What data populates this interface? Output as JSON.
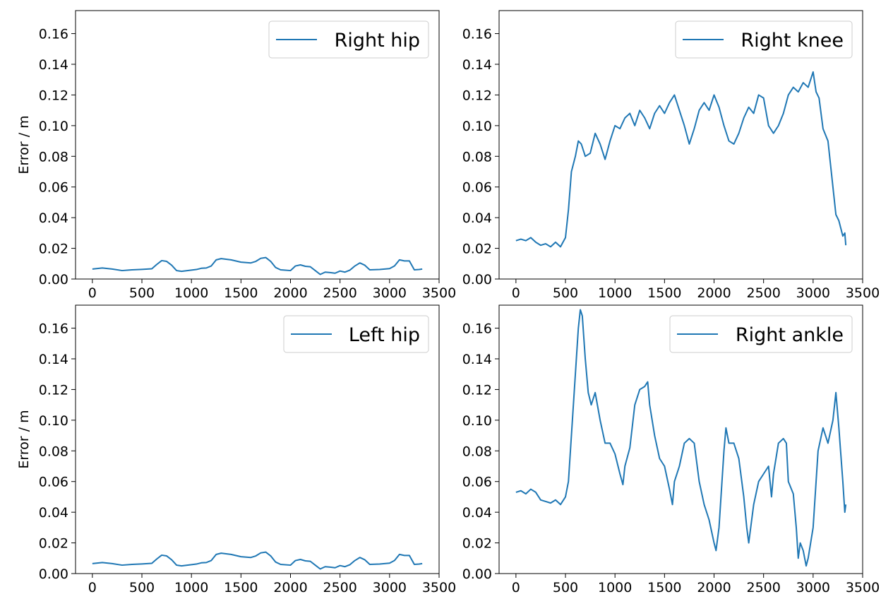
{
  "chart_data": [
    {
      "type": "line",
      "panel": "top-left",
      "ylabel": "Error / m",
      "xlim": [
        -170,
        3500
      ],
      "ylim": [
        0,
        0.175
      ],
      "xticks": [
        0,
        500,
        1000,
        1500,
        2000,
        2500,
        3000,
        3500
      ],
      "xtick_labels": [
        "0",
        "500",
        "1000",
        "1500",
        "2000",
        "2500",
        "3000",
        "3500"
      ],
      "yticks": [
        0,
        0.02,
        0.04,
        0.06,
        0.08,
        0.1,
        0.12,
        0.14,
        0.16
      ],
      "ytick_labels": [
        "0.00",
        "0.02",
        "0.04",
        "0.06",
        "0.08",
        "0.10",
        "0.12",
        "0.14",
        "0.16"
      ],
      "legend": "top-right",
      "grid": false,
      "series": [
        {
          "name": "Right hip",
          "color": "#1f77b4",
          "x": [
            0,
            100,
            200,
            300,
            400,
            500,
            600,
            650,
            700,
            750,
            800,
            850,
            900,
            1000,
            1050,
            1100,
            1150,
            1200,
            1250,
            1300,
            1400,
            1500,
            1600,
            1650,
            1700,
            1750,
            1800,
            1850,
            1900,
            2000,
            2050,
            2100,
            2150,
            2200,
            2250,
            2300,
            2350,
            2400,
            2450,
            2500,
            2550,
            2600,
            2650,
            2700,
            2750,
            2800,
            2900,
            3000,
            3050,
            3100,
            3150,
            3200,
            3250,
            3300,
            3330
          ],
          "y": [
            0.0065,
            0.0072,
            0.0065,
            0.0055,
            0.006,
            0.0063,
            0.0067,
            0.0095,
            0.012,
            0.0115,
            0.009,
            0.0055,
            0.005,
            0.0058,
            0.0062,
            0.007,
            0.0072,
            0.0085,
            0.0125,
            0.0133,
            0.0125,
            0.011,
            0.0105,
            0.0115,
            0.0135,
            0.014,
            0.0115,
            0.0075,
            0.006,
            0.0055,
            0.0085,
            0.0092,
            0.0083,
            0.008,
            0.0055,
            0.003,
            0.0045,
            0.0042,
            0.0038,
            0.0052,
            0.0045,
            0.0058,
            0.0085,
            0.0105,
            0.009,
            0.006,
            0.0062,
            0.0068,
            0.0085,
            0.0125,
            0.0118,
            0.0118,
            0.006,
            0.0062,
            0.0065
          ]
        }
      ]
    },
    {
      "type": "line",
      "panel": "top-right",
      "xlim": [
        -170,
        3500
      ],
      "ylim": [
        0,
        0.175
      ],
      "xticks": [
        0,
        500,
        1000,
        1500,
        2000,
        2500,
        3000,
        3500
      ],
      "xtick_labels": [
        "0",
        "500",
        "1000",
        "1500",
        "2000",
        "2500",
        "3000",
        "3500"
      ],
      "yticks": [
        0,
        0.02,
        0.04,
        0.06,
        0.08,
        0.1,
        0.12,
        0.14,
        0.16
      ],
      "ytick_labels": [
        "0.00",
        "0.02",
        "0.04",
        "0.06",
        "0.08",
        "0.10",
        "0.12",
        "0.14",
        "0.16"
      ],
      "legend": "top-right",
      "grid": false,
      "series": [
        {
          "name": "Right knee",
          "color": "#1f77b4",
          "x": [
            0,
            50,
            100,
            150,
            200,
            250,
            300,
            350,
            400,
            450,
            500,
            530,
            560,
            600,
            630,
            660,
            700,
            750,
            800,
            850,
            900,
            950,
            1000,
            1050,
            1100,
            1150,
            1200,
            1250,
            1300,
            1350,
            1400,
            1450,
            1500,
            1550,
            1600,
            1650,
            1700,
            1750,
            1800,
            1850,
            1900,
            1950,
            2000,
            2050,
            2100,
            2150,
            2200,
            2250,
            2300,
            2350,
            2400,
            2450,
            2500,
            2550,
            2600,
            2650,
            2700,
            2750,
            2800,
            2850,
            2900,
            2950,
            3000,
            3030,
            3060,
            3100,
            3150,
            3200,
            3230,
            3260,
            3300,
            3320,
            3330
          ],
          "y": [
            0.025,
            0.026,
            0.025,
            0.027,
            0.024,
            0.022,
            0.023,
            0.021,
            0.024,
            0.021,
            0.027,
            0.045,
            0.07,
            0.08,
            0.09,
            0.088,
            0.08,
            0.082,
            0.095,
            0.088,
            0.078,
            0.09,
            0.1,
            0.098,
            0.105,
            0.108,
            0.1,
            0.11,
            0.105,
            0.098,
            0.108,
            0.113,
            0.108,
            0.115,
            0.12,
            0.11,
            0.1,
            0.088,
            0.098,
            0.11,
            0.115,
            0.11,
            0.12,
            0.112,
            0.1,
            0.09,
            0.088,
            0.095,
            0.105,
            0.112,
            0.108,
            0.12,
            0.118,
            0.1,
            0.095,
            0.1,
            0.108,
            0.12,
            0.125,
            0.122,
            0.128,
            0.125,
            0.135,
            0.122,
            0.118,
            0.098,
            0.09,
            0.06,
            0.042,
            0.038,
            0.028,
            0.03,
            0.022
          ]
        }
      ]
    },
    {
      "type": "line",
      "panel": "bottom-left",
      "ylabel": "Error / m",
      "xlim": [
        -170,
        3500
      ],
      "ylim": [
        0,
        0.175
      ],
      "xticks": [
        0,
        500,
        1000,
        1500,
        2000,
        2500,
        3000,
        3500
      ],
      "xtick_labels": [
        "0",
        "500",
        "1000",
        "1500",
        "2000",
        "2500",
        "3000",
        "3500"
      ],
      "yticks": [
        0,
        0.02,
        0.04,
        0.06,
        0.08,
        0.1,
        0.12,
        0.14,
        0.16
      ],
      "ytick_labels": [
        "0.00",
        "0.02",
        "0.04",
        "0.06",
        "0.08",
        "0.10",
        "0.12",
        "0.14",
        "0.16"
      ],
      "legend": "top-right",
      "grid": false,
      "series": [
        {
          "name": "Left hip",
          "color": "#1f77b4",
          "x": [
            0,
            100,
            200,
            300,
            400,
            500,
            600,
            650,
            700,
            750,
            800,
            850,
            900,
            1000,
            1050,
            1100,
            1150,
            1200,
            1250,
            1300,
            1400,
            1500,
            1600,
            1650,
            1700,
            1750,
            1800,
            1850,
            1900,
            2000,
            2050,
            2100,
            2150,
            2200,
            2250,
            2300,
            2350,
            2400,
            2450,
            2500,
            2550,
            2600,
            2650,
            2700,
            2750,
            2800,
            2900,
            3000,
            3050,
            3100,
            3150,
            3200,
            3250,
            3300,
            3330
          ],
          "y": [
            0.0065,
            0.0072,
            0.0065,
            0.0055,
            0.006,
            0.0063,
            0.0067,
            0.0095,
            0.012,
            0.0115,
            0.009,
            0.0055,
            0.005,
            0.0058,
            0.0062,
            0.007,
            0.0072,
            0.0085,
            0.0125,
            0.0133,
            0.0125,
            0.011,
            0.0105,
            0.0115,
            0.0135,
            0.014,
            0.0115,
            0.0075,
            0.006,
            0.0055,
            0.0085,
            0.0092,
            0.0083,
            0.008,
            0.0055,
            0.003,
            0.0045,
            0.0042,
            0.0038,
            0.0052,
            0.0045,
            0.0058,
            0.0085,
            0.0105,
            0.009,
            0.006,
            0.0062,
            0.0068,
            0.0085,
            0.0125,
            0.0118,
            0.0118,
            0.006,
            0.0062,
            0.0065
          ]
        }
      ]
    },
    {
      "type": "line",
      "panel": "bottom-right",
      "xlim": [
        -170,
        3500
      ],
      "ylim": [
        0,
        0.175
      ],
      "xticks": [
        0,
        500,
        1000,
        1500,
        2000,
        2500,
        3000,
        3500
      ],
      "xtick_labels": [
        "0",
        "500",
        "1000",
        "1500",
        "2000",
        "2500",
        "3000",
        "3500"
      ],
      "yticks": [
        0,
        0.02,
        0.04,
        0.06,
        0.08,
        0.1,
        0.12,
        0.14,
        0.16
      ],
      "ytick_labels": [
        "0.00",
        "0.02",
        "0.04",
        "0.06",
        "0.08",
        "0.10",
        "0.12",
        "0.14",
        "0.16"
      ],
      "legend": "top-right",
      "grid": false,
      "series": [
        {
          "name": "Right ankle",
          "color": "#1f77b4",
          "x": [
            0,
            50,
            100,
            150,
            200,
            250,
            300,
            350,
            400,
            450,
            500,
            530,
            560,
            600,
            630,
            650,
            670,
            700,
            730,
            760,
            800,
            850,
            900,
            950,
            1000,
            1050,
            1080,
            1100,
            1150,
            1200,
            1250,
            1300,
            1330,
            1350,
            1400,
            1450,
            1500,
            1550,
            1580,
            1600,
            1650,
            1700,
            1750,
            1800,
            1850,
            1900,
            1950,
            2000,
            2020,
            2050,
            2080,
            2100,
            2120,
            2150,
            2200,
            2250,
            2300,
            2330,
            2350,
            2400,
            2450,
            2500,
            2550,
            2580,
            2600,
            2650,
            2700,
            2730,
            2750,
            2800,
            2830,
            2850,
            2870,
            2900,
            2930,
            2950,
            3000,
            3030,
            3050,
            3100,
            3150,
            3200,
            3230,
            3260,
            3300,
            3320,
            3330
          ],
          "y": [
            0.053,
            0.054,
            0.052,
            0.055,
            0.053,
            0.048,
            0.047,
            0.046,
            0.048,
            0.045,
            0.05,
            0.06,
            0.09,
            0.13,
            0.16,
            0.172,
            0.168,
            0.14,
            0.118,
            0.11,
            0.118,
            0.1,
            0.085,
            0.085,
            0.078,
            0.065,
            0.058,
            0.07,
            0.082,
            0.11,
            0.12,
            0.122,
            0.125,
            0.11,
            0.09,
            0.075,
            0.07,
            0.055,
            0.045,
            0.06,
            0.07,
            0.085,
            0.088,
            0.085,
            0.06,
            0.045,
            0.035,
            0.02,
            0.015,
            0.03,
            0.06,
            0.08,
            0.095,
            0.085,
            0.085,
            0.075,
            0.05,
            0.03,
            0.02,
            0.045,
            0.06,
            0.065,
            0.07,
            0.05,
            0.065,
            0.085,
            0.088,
            0.085,
            0.06,
            0.052,
            0.03,
            0.01,
            0.02,
            0.015,
            0.005,
            0.01,
            0.03,
            0.06,
            0.08,
            0.095,
            0.085,
            0.1,
            0.118,
            0.095,
            0.06,
            0.04,
            0.045
          ]
        }
      ]
    }
  ]
}
